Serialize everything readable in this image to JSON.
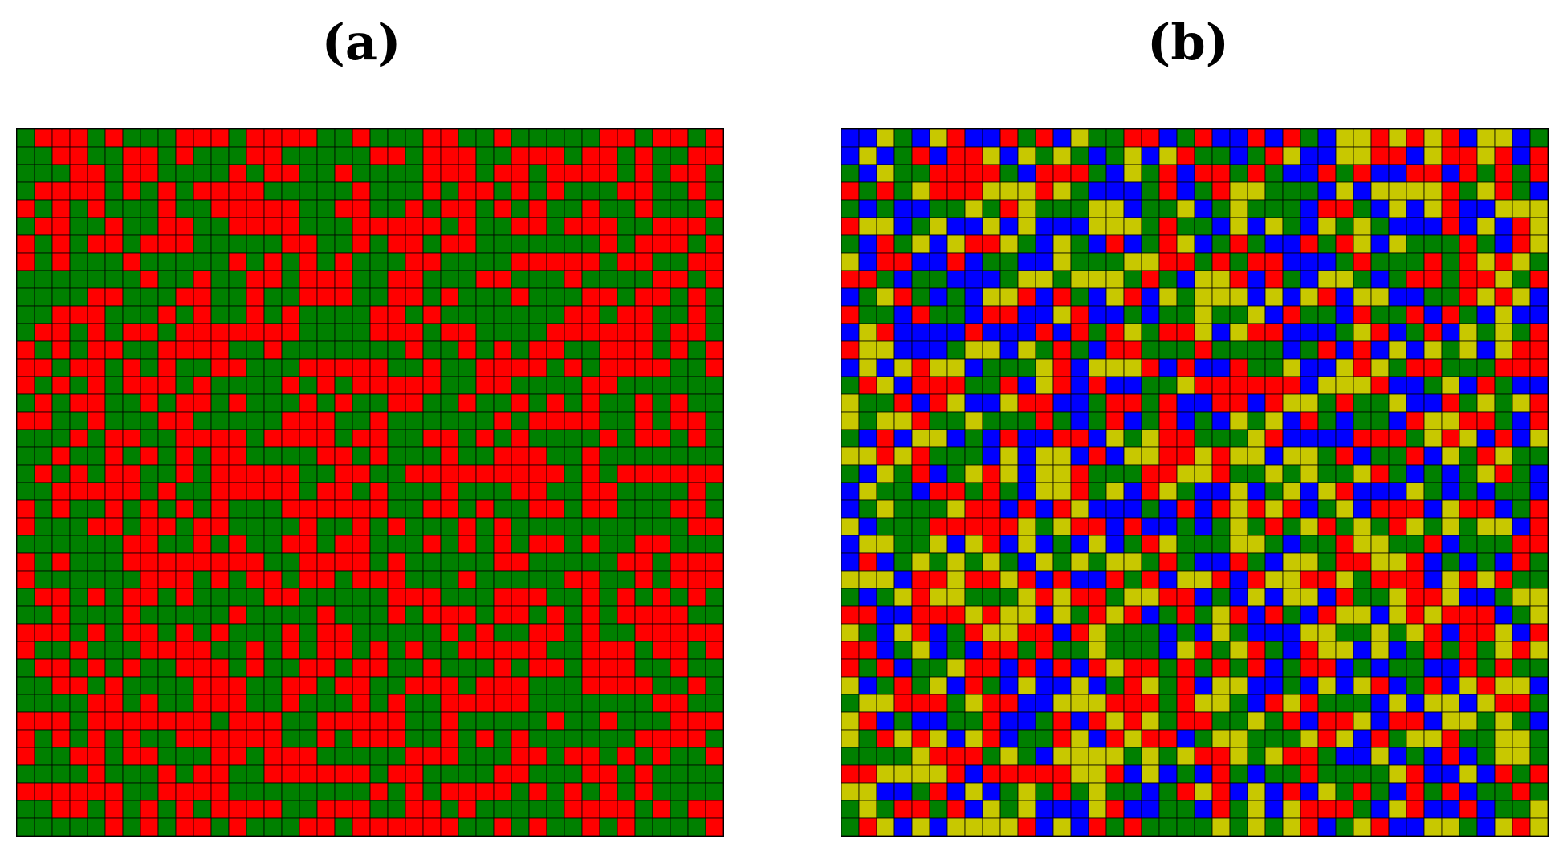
{
  "figure": {
    "panels": [
      {
        "label": "(a)",
        "grid_size": 40,
        "num_states": 2,
        "colors": [
          "#008000",
          "#ff0000"
        ],
        "seed": 7
      },
      {
        "label": "(b)",
        "grid_size": 40,
        "num_states": 4,
        "colors": [
          "#0000ff",
          "#008000",
          "#ff0000",
          "#c8c800"
        ],
        "seed": 19
      }
    ]
  }
}
